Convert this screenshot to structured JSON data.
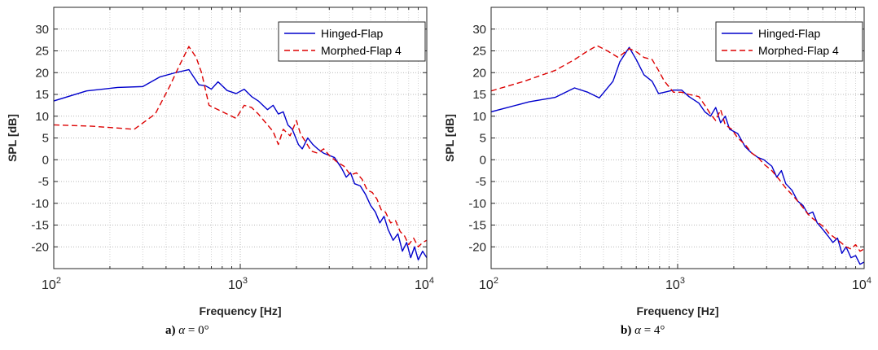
{
  "chart_data": [
    {
      "type": "line",
      "xscale": "log",
      "xlim": [
        100,
        10000
      ],
      "ylim": [
        -25,
        35
      ],
      "xlabel": "Frequency [Hz]",
      "ylabel": "SPL [dB]",
      "xticks": [
        {
          "value": 100,
          "base": "10",
          "exp": "2"
        },
        {
          "value": 1000,
          "base": "10",
          "exp": "3"
        },
        {
          "value": 10000,
          "base": "10",
          "exp": "4"
        }
      ],
      "yticks": [
        30,
        25,
        20,
        15,
        10,
        5,
        0,
        -5,
        -10,
        -15,
        -20
      ],
      "ytick_labels": [
        "30",
        "25",
        "20",
        "15",
        "10",
        "5",
        "0",
        "-5",
        "-10",
        "-15",
        "-20"
      ],
      "grid": true,
      "legend_position": "top-right",
      "caption": {
        "tag": "a)",
        "symbol": "α",
        "text": " = 0°"
      },
      "series": [
        {
          "name": "Hinged-Flap",
          "color": "#0000cc",
          "dash": "solid",
          "points": [
            [
              100,
              13.5
            ],
            [
              150,
              15.8
            ],
            [
              220,
              16.6
            ],
            [
              300,
              16.8
            ],
            [
              370,
              19.0
            ],
            [
              450,
              20.0
            ],
            [
              530,
              20.7
            ],
            [
              600,
              17.2
            ],
            [
              650,
              17.0
            ],
            [
              700,
              16.2
            ],
            [
              760,
              17.9
            ],
            [
              850,
              15.9
            ],
            [
              950,
              15.2
            ],
            [
              1050,
              16.2
            ],
            [
              1150,
              14.5
            ],
            [
              1250,
              13.5
            ],
            [
              1400,
              11.5
            ],
            [
              1500,
              12.5
            ],
            [
              1600,
              10.5
            ],
            [
              1700,
              11.0
            ],
            [
              1800,
              8.0
            ],
            [
              1900,
              7.0
            ],
            [
              2050,
              3.5
            ],
            [
              2150,
              2.5
            ],
            [
              2300,
              5.0
            ],
            [
              2450,
              3.5
            ],
            [
              2600,
              2.5
            ],
            [
              2800,
              1.5
            ],
            [
              3000,
              1.0
            ],
            [
              3200,
              0.5
            ],
            [
              3500,
              -2.0
            ],
            [
              3700,
              -4.0
            ],
            [
              3900,
              -3.0
            ],
            [
              4100,
              -5.5
            ],
            [
              4400,
              -6.0
            ],
            [
              4700,
              -8.0
            ],
            [
              5000,
              -10.5
            ],
            [
              5300,
              -12.0
            ],
            [
              5600,
              -14.5
            ],
            [
              5900,
              -13.0
            ],
            [
              6200,
              -16.0
            ],
            [
              6600,
              -18.5
            ],
            [
              7000,
              -17.0
            ],
            [
              7400,
              -21.0
            ],
            [
              7800,
              -19.0
            ],
            [
              8200,
              -22.5
            ],
            [
              8600,
              -20.0
            ],
            [
              9000,
              -23.0
            ],
            [
              9500,
              -21.0
            ],
            [
              10000,
              -22.5
            ]
          ]
        },
        {
          "name": "Morphed-Flap 4",
          "color": "#dd0000",
          "dash": "dashed",
          "points": [
            [
              100,
              8.0
            ],
            [
              160,
              7.7
            ],
            [
              270,
              7.0
            ],
            [
              350,
              10.5
            ],
            [
              420,
              17.0
            ],
            [
              470,
              21.5
            ],
            [
              530,
              26.0
            ],
            [
              580,
              23.5
            ],
            [
              620,
              20.0
            ],
            [
              680,
              12.5
            ],
            [
              760,
              11.5
            ],
            [
              850,
              10.5
            ],
            [
              950,
              9.5
            ],
            [
              1050,
              12.5
            ],
            [
              1150,
              12.0
            ],
            [
              1250,
              10.5
            ],
            [
              1400,
              8.0
            ],
            [
              1500,
              6.5
            ],
            [
              1600,
              3.5
            ],
            [
              1700,
              7.0
            ],
            [
              1850,
              5.5
            ],
            [
              2000,
              9.0
            ],
            [
              2100,
              6.0
            ],
            [
              2250,
              4.0
            ],
            [
              2400,
              2.0
            ],
            [
              2600,
              1.5
            ],
            [
              2800,
              2.5
            ],
            [
              3000,
              1.0
            ],
            [
              3300,
              -0.5
            ],
            [
              3600,
              -1.5
            ],
            [
              3900,
              -3.5
            ],
            [
              4200,
              -3.0
            ],
            [
              4500,
              -4.5
            ],
            [
              4800,
              -7.0
            ],
            [
              5100,
              -7.5
            ],
            [
              5400,
              -9.0
            ],
            [
              5700,
              -11.5
            ],
            [
              6000,
              -12.0
            ],
            [
              6400,
              -14.5
            ],
            [
              6800,
              -14.0
            ],
            [
              7200,
              -16.5
            ],
            [
              7600,
              -17.5
            ],
            [
              8000,
              -19.5
            ],
            [
              8500,
              -18.0
            ],
            [
              9000,
              -20.0
            ],
            [
              9500,
              -19.0
            ],
            [
              10000,
              -18.5
            ]
          ]
        }
      ]
    },
    {
      "type": "line",
      "xscale": "log",
      "xlim": [
        100,
        10000
      ],
      "ylim": [
        -25,
        35
      ],
      "xlabel": "Frequency [Hz]",
      "ylabel": "SPL [dB]",
      "xticks": [
        {
          "value": 100,
          "base": "10",
          "exp": "2"
        },
        {
          "value": 1000,
          "base": "10",
          "exp": "3"
        },
        {
          "value": 10000,
          "base": "10",
          "exp": "4"
        }
      ],
      "yticks": [
        30,
        25,
        20,
        15,
        10,
        5,
        0,
        -5,
        -10,
        -15,
        -20
      ],
      "ytick_labels": [
        "30",
        "25",
        "20",
        "15",
        "10",
        "5",
        "0",
        "-5",
        "-10",
        "-15",
        "-20"
      ],
      "grid": true,
      "legend_position": "top-right",
      "caption": {
        "tag": "b)",
        "symbol": "α",
        "text": " = 4°"
      },
      "series": [
        {
          "name": "Hinged-Flap",
          "color": "#0000cc",
          "dash": "solid",
          "points": [
            [
              100,
              11.0
            ],
            [
              160,
              13.3
            ],
            [
              220,
              14.3
            ],
            [
              280,
              16.5
            ],
            [
              330,
              15.5
            ],
            [
              380,
              14.2
            ],
            [
              450,
              18.0
            ],
            [
              490,
              22.5
            ],
            [
              550,
              25.8
            ],
            [
              600,
              23.0
            ],
            [
              660,
              19.5
            ],
            [
              730,
              18.0
            ],
            [
              790,
              15.2
            ],
            [
              850,
              15.5
            ],
            [
              950,
              16.0
            ],
            [
              1050,
              16.0
            ],
            [
              1150,
              14.5
            ],
            [
              1300,
              13.0
            ],
            [
              1400,
              11.0
            ],
            [
              1500,
              10.0
            ],
            [
              1600,
              12.0
            ],
            [
              1700,
              8.5
            ],
            [
              1800,
              10.0
            ],
            [
              1900,
              7.0
            ],
            [
              2100,
              6.0
            ],
            [
              2300,
              3.0
            ],
            [
              2500,
              1.5
            ],
            [
              2700,
              0.5
            ],
            [
              2900,
              0.0
            ],
            [
              3200,
              -1.5
            ],
            [
              3400,
              -4.0
            ],
            [
              3600,
              -2.5
            ],
            [
              3800,
              -5.5
            ],
            [
              4100,
              -7.0
            ],
            [
              4400,
              -9.5
            ],
            [
              4700,
              -10.5
            ],
            [
              5000,
              -12.5
            ],
            [
              5300,
              -12.0
            ],
            [
              5600,
              -14.5
            ],
            [
              6000,
              -16.0
            ],
            [
              6400,
              -17.5
            ],
            [
              6800,
              -19.0
            ],
            [
              7200,
              -18.0
            ],
            [
              7600,
              -21.5
            ],
            [
              8000,
              -20.0
            ],
            [
              8500,
              -22.5
            ],
            [
              9000,
              -22.0
            ],
            [
              9500,
              -24.0
            ],
            [
              10000,
              -23.5
            ]
          ]
        },
        {
          "name": "Morphed-Flap 4",
          "color": "#dd0000",
          "dash": "dashed",
          "points": [
            [
              100,
              15.8
            ],
            [
              150,
              18.0
            ],
            [
              220,
              20.5
            ],
            [
              280,
              23.0
            ],
            [
              330,
              25.0
            ],
            [
              370,
              26.2
            ],
            [
              420,
              25.0
            ],
            [
              480,
              23.5
            ],
            [
              550,
              25.5
            ],
            [
              600,
              24.8
            ],
            [
              660,
              23.5
            ],
            [
              730,
              23.0
            ],
            [
              790,
              20.5
            ],
            [
              850,
              18.0
            ],
            [
              950,
              15.5
            ],
            [
              1050,
              15.5
            ],
            [
              1150,
              15.0
            ],
            [
              1300,
              14.5
            ],
            [
              1400,
              12.5
            ],
            [
              1500,
              10.5
            ],
            [
              1600,
              9.0
            ],
            [
              1700,
              11.5
            ],
            [
              1800,
              8.0
            ],
            [
              1950,
              7.0
            ],
            [
              2100,
              5.0
            ],
            [
              2300,
              3.5
            ],
            [
              2500,
              1.5
            ],
            [
              2700,
              0.5
            ],
            [
              2900,
              -1.0
            ],
            [
              3200,
              -2.5
            ],
            [
              3500,
              -4.5
            ],
            [
              3800,
              -6.5
            ],
            [
              4100,
              -8.0
            ],
            [
              4400,
              -9.5
            ],
            [
              4700,
              -11.0
            ],
            [
              5000,
              -12.5
            ],
            [
              5300,
              -13.5
            ],
            [
              5700,
              -14.5
            ],
            [
              6100,
              -15.5
            ],
            [
              6500,
              -17.0
            ],
            [
              7000,
              -18.0
            ],
            [
              7500,
              -19.0
            ],
            [
              8000,
              -20.0
            ],
            [
              8500,
              -20.5
            ],
            [
              9000,
              -19.5
            ],
            [
              9500,
              -21.0
            ],
            [
              10000,
              -20.5
            ]
          ]
        }
      ]
    }
  ]
}
